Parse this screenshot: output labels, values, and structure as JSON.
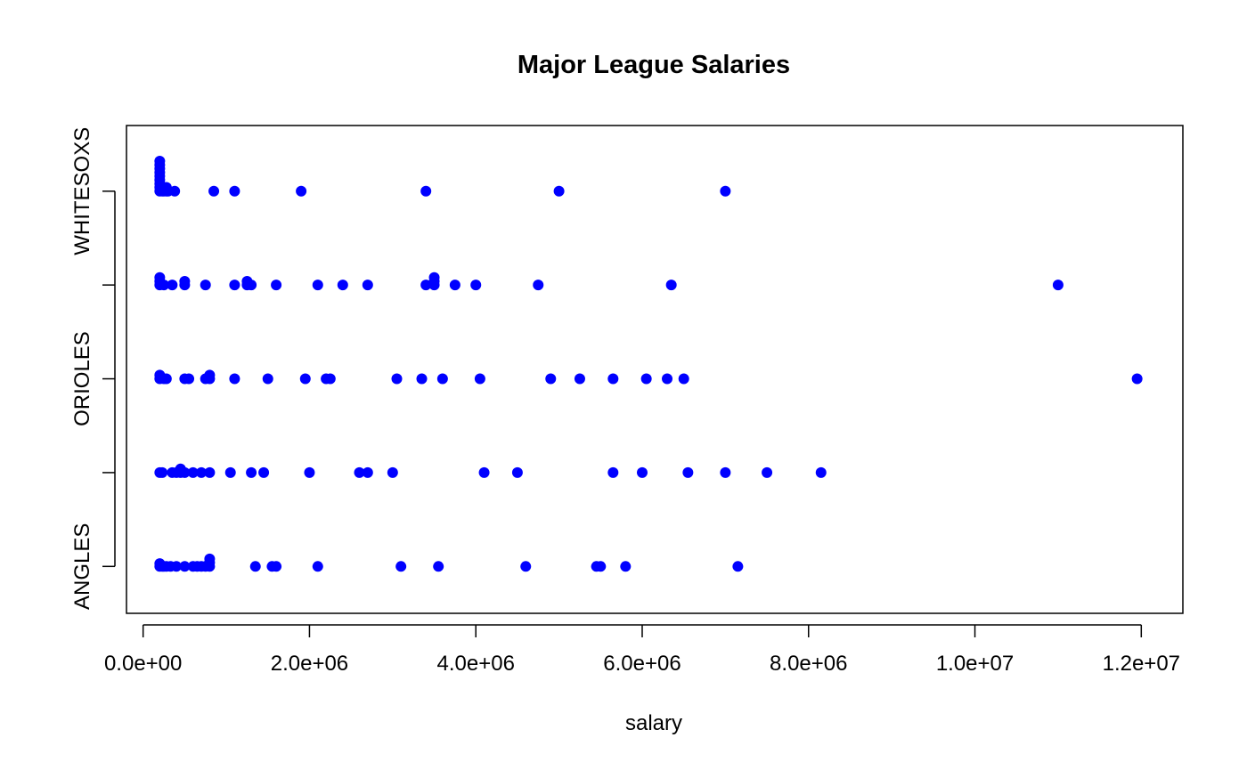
{
  "colors": {
    "point": "#0000ff",
    "axis": "#000000",
    "background": "#ffffff"
  },
  "chart_data": {
    "type": "scatter",
    "title": "Major League Salaries",
    "xlabel": "salary",
    "ylabel": "",
    "xlim": [
      -200000,
      12500000
    ],
    "ylim": [
      0.5,
      5.7
    ],
    "grid": false,
    "legend": "none",
    "x_ticks": [
      0,
      2000000,
      4000000,
      6000000,
      8000000,
      10000000,
      12000000
    ],
    "x_tick_labels": [
      "0.0e+00",
      "2.0e+06",
      "4.0e+06",
      "6.0e+06",
      "8.0e+06",
      "1.0e+07",
      "1.2e+07"
    ],
    "y_ticks": [
      1,
      2,
      3,
      4,
      5
    ],
    "y_tick_labels": [
      {
        "value": 1,
        "label": "ANGLES"
      },
      {
        "value": 2,
        "label": ""
      },
      {
        "value": 3,
        "label": "ORIOLES"
      },
      {
        "value": 4,
        "label": ""
      },
      {
        "value": 5,
        "label": "WHITESOXS"
      }
    ],
    "series": [
      {
        "level": 1,
        "points": [
          [
            200000,
            1.0
          ],
          [
            200000,
            1.03
          ],
          [
            230000,
            1.0
          ],
          [
            250000,
            1.0
          ],
          [
            280000,
            1.0
          ],
          [
            330000,
            1.0
          ],
          [
            400000,
            1.0
          ],
          [
            500000,
            1.0
          ],
          [
            600000,
            1.0
          ],
          [
            650000,
            1.0
          ],
          [
            700000,
            1.0
          ],
          [
            750000,
            1.0
          ],
          [
            800000,
            1.0
          ],
          [
            800000,
            1.04
          ],
          [
            800000,
            1.08
          ],
          [
            1350000,
            1.0
          ],
          [
            1550000,
            1.0
          ],
          [
            1600000,
            1.0
          ],
          [
            2100000,
            1.0
          ],
          [
            3100000,
            1.0
          ],
          [
            3550000,
            1.0
          ],
          [
            4600000,
            1.0
          ],
          [
            5450000,
            1.0
          ],
          [
            5500000,
            1.0
          ],
          [
            5800000,
            1.0
          ],
          [
            7150000,
            1.0
          ]
        ]
      },
      {
        "level": 2,
        "points": [
          [
            200000,
            2.0
          ],
          [
            230000,
            2.0
          ],
          [
            350000,
            2.0
          ],
          [
            400000,
            2.0
          ],
          [
            450000,
            2.0
          ],
          [
            450000,
            2.04
          ],
          [
            500000,
            2.0
          ],
          [
            600000,
            2.0
          ],
          [
            700000,
            2.0
          ],
          [
            800000,
            2.0
          ],
          [
            1050000,
            2.0
          ],
          [
            1300000,
            2.0
          ],
          [
            1450000,
            2.0
          ],
          [
            2000000,
            2.0
          ],
          [
            2600000,
            2.0
          ],
          [
            2700000,
            2.0
          ],
          [
            3000000,
            2.0
          ],
          [
            4100000,
            2.0
          ],
          [
            4500000,
            2.0
          ],
          [
            5650000,
            2.0
          ],
          [
            6000000,
            2.0
          ],
          [
            6550000,
            2.0
          ],
          [
            7000000,
            2.0
          ],
          [
            7500000,
            2.0
          ],
          [
            8150000,
            2.0
          ]
        ]
      },
      {
        "level": 3,
        "points": [
          [
            200000,
            3.0
          ],
          [
            200000,
            3.04
          ],
          [
            250000,
            3.0
          ],
          [
            280000,
            3.0
          ],
          [
            500000,
            3.0
          ],
          [
            550000,
            3.0
          ],
          [
            750000,
            3.0
          ],
          [
            800000,
            3.0
          ],
          [
            800000,
            3.04
          ],
          [
            1100000,
            3.0
          ],
          [
            1500000,
            3.0
          ],
          [
            1950000,
            3.0
          ],
          [
            2200000,
            3.0
          ],
          [
            2250000,
            3.0
          ],
          [
            3050000,
            3.0
          ],
          [
            3350000,
            3.0
          ],
          [
            3600000,
            3.0
          ],
          [
            4050000,
            3.0
          ],
          [
            4900000,
            3.0
          ],
          [
            5250000,
            3.0
          ],
          [
            5650000,
            3.0
          ],
          [
            6050000,
            3.0
          ],
          [
            6300000,
            3.0
          ],
          [
            6500000,
            3.0
          ],
          [
            11950000,
            3.0
          ]
        ]
      },
      {
        "level": 4,
        "points": [
          [
            200000,
            4.0
          ],
          [
            200000,
            4.04
          ],
          [
            200000,
            4.08
          ],
          [
            250000,
            4.0
          ],
          [
            350000,
            4.0
          ],
          [
            500000,
            4.0
          ],
          [
            500000,
            4.04
          ],
          [
            750000,
            4.0
          ],
          [
            1100000,
            4.0
          ],
          [
            1250000,
            4.0
          ],
          [
            1250000,
            4.04
          ],
          [
            1300000,
            4.0
          ],
          [
            1600000,
            4.0
          ],
          [
            2100000,
            4.0
          ],
          [
            2400000,
            4.0
          ],
          [
            2700000,
            4.0
          ],
          [
            3400000,
            4.0
          ],
          [
            3500000,
            4.0
          ],
          [
            3500000,
            4.04
          ],
          [
            3500000,
            4.08
          ],
          [
            3750000,
            4.0
          ],
          [
            4000000,
            4.0
          ],
          [
            4750000,
            4.0
          ],
          [
            6350000,
            4.0
          ],
          [
            11000000,
            4.0
          ]
        ]
      },
      {
        "level": 5,
        "points": [
          [
            200000,
            5.0
          ],
          [
            200000,
            5.04
          ],
          [
            200000,
            5.08
          ],
          [
            200000,
            5.12
          ],
          [
            200000,
            5.16
          ],
          [
            200000,
            5.2
          ],
          [
            200000,
            5.24
          ],
          [
            200000,
            5.28
          ],
          [
            200000,
            5.32
          ],
          [
            230000,
            5.0
          ],
          [
            230000,
            5.04
          ],
          [
            250000,
            5.0
          ],
          [
            250000,
            5.04
          ],
          [
            280000,
            5.0
          ],
          [
            280000,
            5.04
          ],
          [
            300000,
            5.0
          ],
          [
            380000,
            5.0
          ],
          [
            850000,
            5.0
          ],
          [
            1100000,
            5.0
          ],
          [
            1900000,
            5.0
          ],
          [
            3400000,
            5.0
          ],
          [
            5000000,
            5.0
          ],
          [
            7000000,
            5.0
          ]
        ]
      }
    ]
  }
}
